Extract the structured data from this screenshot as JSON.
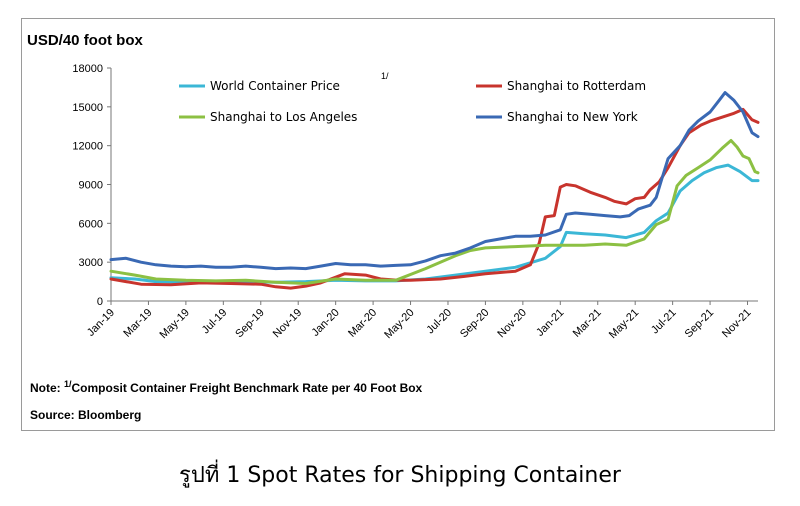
{
  "chart_data": {
    "type": "line",
    "unit_label": "USD/40 foot box",
    "yticks": [
      0,
      3000,
      6000,
      9000,
      12000,
      15000,
      18000
    ],
    "ylim": [
      0,
      18000
    ],
    "x_count": 150,
    "xticks": [
      {
        "i": 0,
        "label": "Jan-19"
      },
      {
        "i": 12.5,
        "label": "Mar-19"
      },
      {
        "i": 25,
        "label": "May-19"
      },
      {
        "i": 37.5,
        "label": "Jul-19"
      },
      {
        "i": 50,
        "label": "Sep-19"
      },
      {
        "i": 62.5,
        "label": "Nov-19"
      },
      {
        "i": 75,
        "label": "Jan-20"
      },
      {
        "i": 87.5,
        "label": "Mar-20"
      },
      {
        "i": 100,
        "label": "May-20"
      },
      {
        "i": 112.5,
        "label": "Jul-20"
      },
      {
        "i": 125,
        "label": "Sep-20"
      },
      {
        "i": 137.5,
        "label": "Nov-20"
      },
      {
        "i": 150,
        "label": "Jan-21"
      },
      {
        "i": 162.5,
        "label": "Mar-21"
      },
      {
        "i": 175,
        "label": "May-21"
      },
      {
        "i": 187.5,
        "label": "Jul-21"
      },
      {
        "i": 200,
        "label": "Sep-21"
      },
      {
        "i": 212.5,
        "label": "Nov-21"
      }
    ],
    "x_max": 216,
    "footnote_marker": "1/",
    "series": [
      {
        "name": "World Container Price",
        "color": "#3bb7d6",
        "legend_pos": "top-left",
        "points": [
          [
            0,
            1800
          ],
          [
            8,
            1700
          ],
          [
            15,
            1500
          ],
          [
            25,
            1450
          ],
          [
            40,
            1500
          ],
          [
            55,
            1450
          ],
          [
            65,
            1500
          ],
          [
            75,
            1600
          ],
          [
            85,
            1550
          ],
          [
            95,
            1550
          ],
          [
            105,
            1700
          ],
          [
            115,
            2000
          ],
          [
            125,
            2300
          ],
          [
            135,
            2600
          ],
          [
            145,
            3300
          ],
          [
            150,
            4200
          ],
          [
            152,
            5300
          ],
          [
            158,
            5200
          ],
          [
            165,
            5100
          ],
          [
            172,
            4900
          ],
          [
            178,
            5300
          ],
          [
            182,
            6200
          ],
          [
            186,
            6800
          ],
          [
            190,
            8500
          ],
          [
            194,
            9300
          ],
          [
            198,
            9900
          ],
          [
            202,
            10300
          ],
          [
            206,
            10500
          ],
          [
            210,
            10000
          ],
          [
            214,
            9300
          ],
          [
            216,
            9300
          ]
        ]
      },
      {
        "name": "Shanghai to Rotterdam",
        "color": "#c8342d",
        "legend_pos": "top-right",
        "points": [
          [
            0,
            1700
          ],
          [
            5,
            1500
          ],
          [
            10,
            1300
          ],
          [
            20,
            1250
          ],
          [
            30,
            1400
          ],
          [
            40,
            1350
          ],
          [
            50,
            1300
          ],
          [
            55,
            1100
          ],
          [
            60,
            1000
          ],
          [
            65,
            1150
          ],
          [
            70,
            1400
          ],
          [
            78,
            2100
          ],
          [
            85,
            2000
          ],
          [
            90,
            1700
          ],
          [
            96,
            1600
          ],
          [
            100,
            1600
          ],
          [
            105,
            1650
          ],
          [
            110,
            1700
          ],
          [
            118,
            1900
          ],
          [
            125,
            2100
          ],
          [
            135,
            2300
          ],
          [
            140,
            2800
          ],
          [
            143,
            4500
          ],
          [
            145,
            6500
          ],
          [
            148,
            6600
          ],
          [
            150,
            8800
          ],
          [
            152,
            9000
          ],
          [
            155,
            8900
          ],
          [
            160,
            8400
          ],
          [
            165,
            8000
          ],
          [
            168,
            7700
          ],
          [
            172,
            7500
          ],
          [
            175,
            7900
          ],
          [
            178,
            8000
          ],
          [
            180,
            8600
          ],
          [
            183,
            9200
          ],
          [
            186,
            10300
          ],
          [
            190,
            12000
          ],
          [
            193,
            13000
          ],
          [
            197,
            13600
          ],
          [
            200,
            13900
          ],
          [
            204,
            14200
          ],
          [
            208,
            14500
          ],
          [
            211,
            14800
          ],
          [
            214,
            14000
          ],
          [
            216,
            13800
          ]
        ]
      },
      {
        "name": "Shanghai to Los Angeles",
        "color": "#8cc043",
        "legend_pos": "bottom-left",
        "points": [
          [
            0,
            2300
          ],
          [
            8,
            2000
          ],
          [
            15,
            1700
          ],
          [
            25,
            1600
          ],
          [
            35,
            1550
          ],
          [
            45,
            1600
          ],
          [
            55,
            1450
          ],
          [
            65,
            1350
          ],
          [
            75,
            1700
          ],
          [
            85,
            1600
          ],
          [
            95,
            1600
          ],
          [
            105,
            2500
          ],
          [
            115,
            3500
          ],
          [
            120,
            3900
          ],
          [
            125,
            4100
          ],
          [
            135,
            4200
          ],
          [
            145,
            4300
          ],
          [
            150,
            4300
          ],
          [
            158,
            4300
          ],
          [
            165,
            4400
          ],
          [
            172,
            4300
          ],
          [
            178,
            4800
          ],
          [
            182,
            5900
          ],
          [
            186,
            6300
          ],
          [
            189,
            8900
          ],
          [
            192,
            9700
          ],
          [
            196,
            10300
          ],
          [
            200,
            10900
          ],
          [
            204,
            11800
          ],
          [
            207,
            12400
          ],
          [
            209,
            11900
          ],
          [
            211,
            11200
          ],
          [
            213,
            11000
          ],
          [
            215,
            10000
          ],
          [
            216,
            9900
          ]
        ]
      },
      {
        "name": "Shanghai to New York",
        "color": "#3a69b4",
        "legend_pos": "bottom-right",
        "points": [
          [
            0,
            3200
          ],
          [
            5,
            3300
          ],
          [
            10,
            3000
          ],
          [
            15,
            2800
          ],
          [
            20,
            2700
          ],
          [
            25,
            2650
          ],
          [
            30,
            2700
          ],
          [
            35,
            2600
          ],
          [
            40,
            2600
          ],
          [
            45,
            2700
          ],
          [
            50,
            2600
          ],
          [
            55,
            2500
          ],
          [
            60,
            2550
          ],
          [
            65,
            2500
          ],
          [
            70,
            2700
          ],
          [
            75,
            2900
          ],
          [
            80,
            2800
          ],
          [
            85,
            2800
          ],
          [
            90,
            2700
          ],
          [
            95,
            2750
          ],
          [
            100,
            2800
          ],
          [
            105,
            3100
          ],
          [
            110,
            3500
          ],
          [
            115,
            3700
          ],
          [
            120,
            4100
          ],
          [
            125,
            4600
          ],
          [
            130,
            4800
          ],
          [
            135,
            5000
          ],
          [
            140,
            5000
          ],
          [
            145,
            5100
          ],
          [
            150,
            5500
          ],
          [
            152,
            6700
          ],
          [
            155,
            6800
          ],
          [
            160,
            6700
          ],
          [
            165,
            6600
          ],
          [
            170,
            6500
          ],
          [
            173,
            6600
          ],
          [
            176,
            7100
          ],
          [
            180,
            7400
          ],
          [
            182,
            8000
          ],
          [
            184,
            9500
          ],
          [
            186,
            11000
          ],
          [
            190,
            12000
          ],
          [
            193,
            13200
          ],
          [
            196,
            13900
          ],
          [
            200,
            14600
          ],
          [
            203,
            15500
          ],
          [
            205,
            16100
          ],
          [
            208,
            15500
          ],
          [
            211,
            14600
          ],
          [
            214,
            13000
          ],
          [
            216,
            12700
          ]
        ]
      }
    ]
  },
  "note": {
    "prefix": "Note: ",
    "superscript": "1/",
    "text": "Composit Container Freight Benchmark Rate per 40 Foot Box"
  },
  "source": "Source: Bloomberg",
  "caption": "รูปที่ 1 Spot Rates for Shipping Container"
}
